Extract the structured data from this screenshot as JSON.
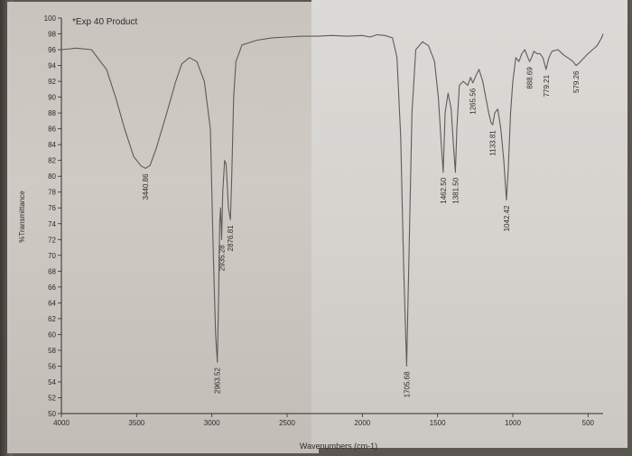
{
  "chart_data": {
    "type": "line",
    "title": "*Exp 40 Product",
    "xlabel": "Wavenumbers (cm-1)",
    "ylabel": "%Transmittance",
    "xlim": [
      4000,
      400
    ],
    "ylim": [
      50,
      100
    ],
    "x_ticks": [
      4000,
      3500,
      3000,
      2500,
      2000,
      1500,
      1000,
      500
    ],
    "y_ticks": [
      50,
      52,
      54,
      56,
      58,
      60,
      62,
      64,
      66,
      68,
      70,
      72,
      74,
      76,
      78,
      80,
      82,
      84,
      86,
      88,
      90,
      92,
      94,
      96,
      98,
      100
    ],
    "series": [
      {
        "points": [
          [
            4000,
            96.0
          ],
          [
            3900,
            96.2
          ],
          [
            3800,
            96.0
          ],
          [
            3700,
            93.5
          ],
          [
            3640,
            90.0
          ],
          [
            3580,
            86.0
          ],
          [
            3520,
            82.5
          ],
          [
            3470,
            81.3
          ],
          [
            3440.86,
            81.0
          ],
          [
            3410,
            81.4
          ],
          [
            3370,
            83.5
          ],
          [
            3300,
            88.0
          ],
          [
            3240,
            92.0
          ],
          [
            3200,
            94.2
          ],
          [
            3150,
            95.0
          ],
          [
            3100,
            94.5
          ],
          [
            3050,
            92.0
          ],
          [
            3010,
            86.0
          ],
          [
            2990,
            70.0
          ],
          [
            2975,
            60.0
          ],
          [
            2963.52,
            56.5
          ],
          [
            2955,
            65.0
          ],
          [
            2948,
            74.0
          ],
          [
            2942,
            76.0
          ],
          [
            2935.28,
            72.0
          ],
          [
            2928,
            78.0
          ],
          [
            2915,
            82.0
          ],
          [
            2905,
            81.5
          ],
          [
            2890,
            76.0
          ],
          [
            2876.81,
            74.5
          ],
          [
            2868,
            80.0
          ],
          [
            2855,
            90.0
          ],
          [
            2840,
            94.5
          ],
          [
            2800,
            96.6
          ],
          [
            2700,
            97.2
          ],
          [
            2600,
            97.5
          ],
          [
            2500,
            97.6
          ],
          [
            2400,
            97.7
          ],
          [
            2300,
            97.7
          ],
          [
            2200,
            97.8
          ],
          [
            2100,
            97.7
          ],
          [
            2000,
            97.8
          ],
          [
            1950,
            97.6
          ],
          [
            1900,
            97.9
          ],
          [
            1850,
            97.8
          ],
          [
            1800,
            97.5
          ],
          [
            1770,
            95.0
          ],
          [
            1745,
            85.0
          ],
          [
            1725,
            68.0
          ],
          [
            1705.68,
            56.0
          ],
          [
            1690,
            70.0
          ],
          [
            1670,
            88.0
          ],
          [
            1645,
            96.0
          ],
          [
            1600,
            97.0
          ],
          [
            1560,
            96.5
          ],
          [
            1520,
            94.5
          ],
          [
            1495,
            90.0
          ],
          [
            1475,
            84.0
          ],
          [
            1462.5,
            80.5
          ],
          [
            1450,
            88.0
          ],
          [
            1430,
            90.5
          ],
          [
            1410,
            88.5
          ],
          [
            1395,
            84.0
          ],
          [
            1381.5,
            80.5
          ],
          [
            1372,
            86.0
          ],
          [
            1355,
            91.5
          ],
          [
            1330,
            92.0
          ],
          [
            1300,
            91.5
          ],
          [
            1280,
            92.5
          ],
          [
            1265.56,
            91.8
          ],
          [
            1250,
            92.5
          ],
          [
            1225,
            93.5
          ],
          [
            1200,
            92.0
          ],
          [
            1180,
            90.0
          ],
          [
            1160,
            88.0
          ],
          [
            1145,
            86.8
          ],
          [
            1133.81,
            86.5
          ],
          [
            1120,
            88.0
          ],
          [
            1100,
            88.5
          ],
          [
            1080,
            86.0
          ],
          [
            1060,
            82.0
          ],
          [
            1042.42,
            77.0
          ],
          [
            1030,
            81.0
          ],
          [
            1015,
            88.0
          ],
          [
            1000,
            92.0
          ],
          [
            980,
            95.0
          ],
          [
            960,
            94.5
          ],
          [
            940,
            95.5
          ],
          [
            920,
            96.0
          ],
          [
            900,
            95.0
          ],
          [
            888.69,
            94.5
          ],
          [
            875,
            95.0
          ],
          [
            860,
            95.8
          ],
          [
            840,
            95.5
          ],
          [
            820,
            95.5
          ],
          [
            800,
            95.0
          ],
          [
            779.21,
            93.5
          ],
          [
            760,
            95.0
          ],
          [
            740,
            95.8
          ],
          [
            700,
            96.0
          ],
          [
            660,
            95.3
          ],
          [
            620,
            94.8
          ],
          [
            600,
            94.5
          ],
          [
            579.26,
            94.0
          ],
          [
            560,
            94.3
          ],
          [
            530,
            94.9
          ],
          [
            500,
            95.5
          ],
          [
            470,
            96.0
          ],
          [
            440,
            96.5
          ],
          [
            410,
            97.5
          ],
          [
            400,
            98.0
          ]
        ]
      }
    ],
    "peaks": [
      {
        "x": 3440.86,
        "y": 81.0,
        "label": "3440.86"
      },
      {
        "x": 2963.52,
        "y": 56.5,
        "label": "2963.52"
      },
      {
        "x": 2935.28,
        "y": 72.0,
        "label": "2935.28"
      },
      {
        "x": 2876.81,
        "y": 74.5,
        "label": "2876.81"
      },
      {
        "x": 1705.68,
        "y": 56.0,
        "label": "1705.68"
      },
      {
        "x": 1462.5,
        "y": 80.5,
        "label": "1462.50"
      },
      {
        "x": 1381.5,
        "y": 80.5,
        "label": "1381.50"
      },
      {
        "x": 1265.56,
        "y": 91.8,
        "label": "1265.56"
      },
      {
        "x": 1133.81,
        "y": 86.5,
        "label": "1133.81"
      },
      {
        "x": 1042.42,
        "y": 77.0,
        "label": "1042.42"
      },
      {
        "x": 888.69,
        "y": 94.5,
        "label": "888.69"
      },
      {
        "x": 779.21,
        "y": 93.5,
        "label": "779.21"
      },
      {
        "x": 579.26,
        "y": 94.0,
        "label": "579.26"
      }
    ],
    "grid": false,
    "colors": {
      "line": "#5c5c5c",
      "axis": "#2e2e2e",
      "text": "#2a2a2a"
    }
  }
}
